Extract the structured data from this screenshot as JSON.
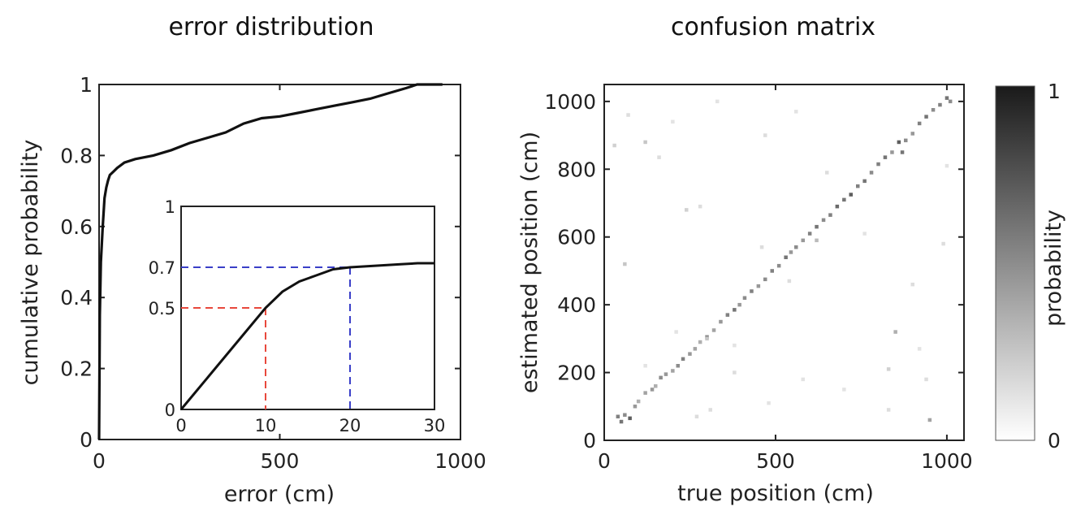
{
  "chart_data": [
    {
      "type": "line",
      "title": "error distribution",
      "xlabel": "error (cm)",
      "ylabel": "cumulative probability",
      "xlim": [
        0,
        1000
      ],
      "ylim": [
        0,
        1
      ],
      "xticks": [
        "0",
        "500",
        "1000"
      ],
      "yticks": [
        "0",
        "0.2",
        "0.4",
        "0.6",
        "0.8",
        "1"
      ],
      "color": "#111111",
      "series": [
        {
          "x": [
            0,
            2,
            5,
            10,
            15,
            20,
            25,
            30,
            40,
            50,
            70,
            100,
            150,
            200,
            250,
            300,
            350,
            400,
            450,
            500,
            550,
            600,
            650,
            700,
            750,
            800,
            850,
            880,
            950
          ],
          "y": [
            0,
            0.35,
            0.5,
            0.6,
            0.68,
            0.71,
            0.73,
            0.745,
            0.755,
            0.765,
            0.78,
            0.79,
            0.8,
            0.815,
            0.835,
            0.85,
            0.865,
            0.89,
            0.905,
            0.91,
            0.92,
            0.93,
            0.94,
            0.95,
            0.96,
            0.975,
            0.99,
            1.0,
            1.0
          ]
        }
      ],
      "grid": false
    },
    {
      "type": "line",
      "title": "",
      "inset_of": "error distribution",
      "xlim": [
        0,
        30
      ],
      "ylim": [
        0,
        1
      ],
      "xticks": [
        "0",
        "10",
        "20",
        "30"
      ],
      "yticks": [
        "0",
        "0.5",
        "0.7",
        "1"
      ],
      "series": [
        {
          "x": [
            0,
            2,
            4,
            6,
            8,
            10,
            12,
            14,
            16,
            18,
            20,
            22,
            24,
            26,
            28,
            30
          ],
          "y": [
            0,
            0.1,
            0.2,
            0.3,
            0.4,
            0.5,
            0.58,
            0.63,
            0.66,
            0.69,
            0.7,
            0.705,
            0.71,
            0.715,
            0.72,
            0.72
          ]
        }
      ],
      "markers": [
        {
          "x": 10,
          "y": 0.5,
          "color": "#e8483c"
        },
        {
          "x": 20,
          "y": 0.7,
          "color": "#3a3fc8"
        }
      ]
    },
    {
      "type": "heatmap",
      "title": "confusion matrix",
      "xlabel": "true position (cm)",
      "ylabel": "estimated position (cm)",
      "xlim": [
        0,
        1050
      ],
      "ylim": [
        0,
        1050
      ],
      "xticks": [
        "0",
        "500",
        "1000"
      ],
      "yticks": [
        "0",
        "200",
        "400",
        "600",
        "800",
        "1000"
      ],
      "colorbar": {
        "label": "probability",
        "min_label": "0",
        "max_label": "1"
      },
      "description_free": true,
      "points": [
        [
          40,
          70,
          0.55
        ],
        [
          50,
          55,
          0.6
        ],
        [
          60,
          75,
          0.5
        ],
        [
          75,
          65,
          0.7
        ],
        [
          90,
          100,
          0.45
        ],
        [
          100,
          115,
          0.35
        ],
        [
          120,
          140,
          0.4
        ],
        [
          140,
          150,
          0.45
        ],
        [
          150,
          160,
          0.35
        ],
        [
          165,
          185,
          0.5
        ],
        [
          180,
          195,
          0.45
        ],
        [
          200,
          205,
          0.4
        ],
        [
          215,
          220,
          0.5
        ],
        [
          230,
          240,
          0.55
        ],
        [
          250,
          255,
          0.45
        ],
        [
          265,
          270,
          0.4
        ],
        [
          280,
          290,
          0.35
        ],
        [
          300,
          305,
          0.5
        ],
        [
          320,
          325,
          0.4
        ],
        [
          340,
          350,
          0.45
        ],
        [
          360,
          370,
          0.55
        ],
        [
          380,
          385,
          0.6
        ],
        [
          395,
          400,
          0.45
        ],
        [
          410,
          420,
          0.5
        ],
        [
          430,
          440,
          0.55
        ],
        [
          450,
          455,
          0.45
        ],
        [
          470,
          475,
          0.5
        ],
        [
          490,
          500,
          0.55
        ],
        [
          510,
          515,
          0.5
        ],
        [
          530,
          540,
          0.6
        ],
        [
          545,
          555,
          0.45
        ],
        [
          560,
          570,
          0.5
        ],
        [
          580,
          590,
          0.45
        ],
        [
          600,
          610,
          0.55
        ],
        [
          620,
          630,
          0.6
        ],
        [
          640,
          650,
          0.5
        ],
        [
          660,
          665,
          0.55
        ],
        [
          680,
          690,
          0.65
        ],
        [
          700,
          710,
          0.6
        ],
        [
          720,
          725,
          0.7
        ],
        [
          740,
          750,
          0.55
        ],
        [
          760,
          765,
          0.6
        ],
        [
          780,
          790,
          0.5
        ],
        [
          800,
          815,
          0.55
        ],
        [
          820,
          835,
          0.6
        ],
        [
          840,
          850,
          0.45
        ],
        [
          860,
          880,
          0.7
        ],
        [
          880,
          885,
          0.5
        ],
        [
          900,
          905,
          0.45
        ],
        [
          920,
          935,
          0.55
        ],
        [
          940,
          955,
          0.6
        ],
        [
          960,
          975,
          0.5
        ],
        [
          980,
          990,
          0.55
        ],
        [
          1000,
          1010,
          0.6
        ],
        [
          1010,
          1000,
          0.5
        ],
        [
          30,
          870,
          0.2
        ],
        [
          70,
          960,
          0.15
        ],
        [
          120,
          880,
          0.25
        ],
        [
          160,
          835,
          0.15
        ],
        [
          200,
          940,
          0.12
        ],
        [
          240,
          680,
          0.2
        ],
        [
          280,
          690,
          0.15
        ],
        [
          330,
          1000,
          0.12
        ],
        [
          60,
          520,
          0.25
        ],
        [
          470,
          900,
          0.15
        ],
        [
          560,
          970,
          0.12
        ],
        [
          620,
          590,
          0.3
        ],
        [
          460,
          570,
          0.15
        ],
        [
          300,
          300,
          0.25
        ],
        [
          380,
          280,
          0.12
        ],
        [
          540,
          470,
          0.15
        ],
        [
          760,
          610,
          0.12
        ],
        [
          900,
          460,
          0.15
        ],
        [
          830,
          210,
          0.2
        ],
        [
          850,
          320,
          0.35
        ],
        [
          870,
          850,
          0.6
        ],
        [
          950,
          60,
          0.4
        ],
        [
          990,
          580,
          0.15
        ],
        [
          940,
          180,
          0.15
        ],
        [
          700,
          150,
          0.12
        ],
        [
          270,
          70,
          0.15
        ],
        [
          310,
          90,
          0.15
        ],
        [
          830,
          90,
          0.15
        ],
        [
          920,
          270,
          0.12
        ],
        [
          1000,
          810,
          0.12
        ],
        [
          650,
          790,
          0.15
        ],
        [
          480,
          110,
          0.12
        ],
        [
          580,
          180,
          0.12
        ],
        [
          210,
          320,
          0.12
        ],
        [
          380,
          200,
          0.15
        ],
        [
          120,
          220,
          0.12
        ]
      ]
    }
  ]
}
